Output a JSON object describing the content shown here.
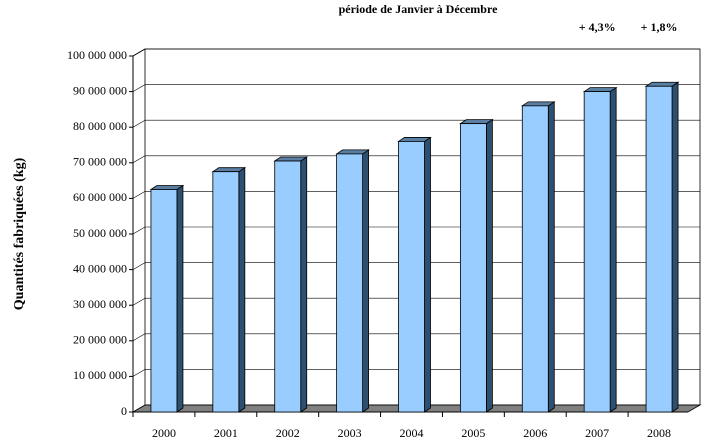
{
  "chart_data": {
    "type": "bar3d",
    "title": "période de Janvier à Décembre",
    "annotations": [
      "+ 4,3%",
      "+ 1,8%"
    ],
    "y_label": "Quantités fabriquées (kg)",
    "categories": [
      "2000",
      "2001",
      "2002",
      "2003",
      "2004",
      "2005",
      "2006",
      "2007",
      "2008"
    ],
    "values": [
      62500000,
      67500000,
      70500000,
      72500000,
      76000000,
      81000000,
      86000000,
      90000000,
      91500000
    ],
    "color": "#99ccff",
    "ylim": [
      0,
      100000000
    ],
    "yticks": [
      {
        "value": 0,
        "label": "0"
      },
      {
        "value": 10000000,
        "label": "10 000 000"
      },
      {
        "value": 20000000,
        "label": "20 000 000"
      },
      {
        "value": 30000000,
        "label": "30 000 000"
      },
      {
        "value": 40000000,
        "label": "40 000 000"
      },
      {
        "value": 50000000,
        "label": "50 000 000"
      },
      {
        "value": 60000000,
        "label": "60 000 000"
      },
      {
        "value": 70000000,
        "label": "70 000 000"
      },
      {
        "value": 80000000,
        "label": "80 000 000"
      },
      {
        "value": 90000000,
        "label": "90 000 000"
      },
      {
        "value": 100000000,
        "label": "100 000 000"
      }
    ],
    "grid": true
  }
}
